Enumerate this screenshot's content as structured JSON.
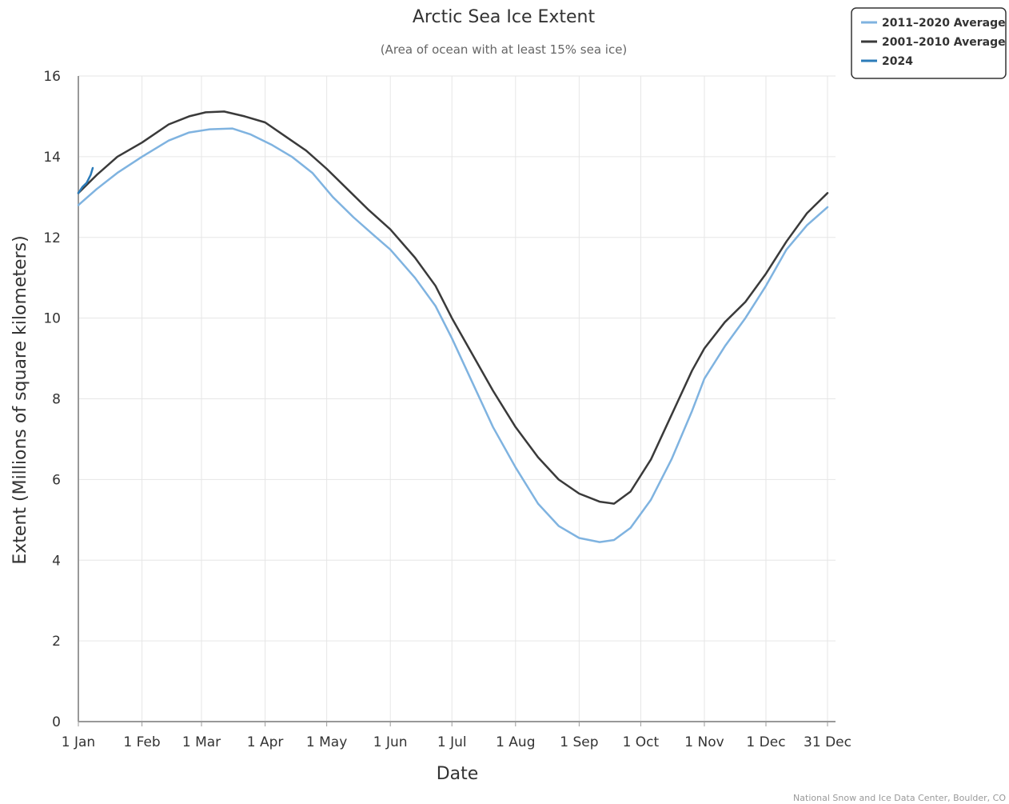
{
  "chart_data": {
    "type": "line",
    "title": "Arctic Sea Ice Extent",
    "subtitle": "(Area of ocean with at least 15% sea ice)",
    "xlabel": "Date",
    "ylabel": "Extent (Millions of square kilometers)",
    "ylim": [
      0,
      16
    ],
    "yticks": [
      "0",
      "2",
      "4",
      "6",
      "8",
      "10",
      "12",
      "14",
      "16"
    ],
    "xticks": [
      {
        "day": 1,
        "label": "1 Jan"
      },
      {
        "day": 32,
        "label": "1 Feb"
      },
      {
        "day": 61,
        "label": "1 Mar"
      },
      {
        "day": 92,
        "label": "1 Apr"
      },
      {
        "day": 122,
        "label": "1 May"
      },
      {
        "day": 153,
        "label": "1 Jun"
      },
      {
        "day": 183,
        "label": "1 Jul"
      },
      {
        "day": 214,
        "label": "1 Aug"
      },
      {
        "day": 245,
        "label": "1 Sep"
      },
      {
        "day": 275,
        "label": "1 Oct"
      },
      {
        "day": 306,
        "label": "1 Nov"
      },
      {
        "day": 336,
        "label": "1 Dec"
      },
      {
        "day": 366,
        "label": "31 Dec"
      }
    ],
    "grid": true,
    "legend_position": "top-right",
    "series": [
      {
        "name": "2011–2020 Average",
        "color": "#7fb3e0",
        "points": [
          [
            1,
            12.8
          ],
          [
            10,
            13.2
          ],
          [
            20,
            13.6
          ],
          [
            32,
            14.0
          ],
          [
            45,
            14.4
          ],
          [
            55,
            14.6
          ],
          [
            65,
            14.68
          ],
          [
            76,
            14.7
          ],
          [
            85,
            14.55
          ],
          [
            95,
            14.3
          ],
          [
            105,
            14.0
          ],
          [
            115,
            13.6
          ],
          [
            125,
            13.0
          ],
          [
            135,
            12.5
          ],
          [
            145,
            12.05
          ],
          [
            153,
            11.7
          ],
          [
            165,
            11.0
          ],
          [
            175,
            10.3
          ],
          [
            183,
            9.5
          ],
          [
            193,
            8.4
          ],
          [
            203,
            7.3
          ],
          [
            214,
            6.3
          ],
          [
            225,
            5.4
          ],
          [
            235,
            4.85
          ],
          [
            245,
            4.55
          ],
          [
            255,
            4.45
          ],
          [
            262,
            4.5
          ],
          [
            270,
            4.8
          ],
          [
            280,
            5.5
          ],
          [
            290,
            6.5
          ],
          [
            300,
            7.7
          ],
          [
            306,
            8.5
          ],
          [
            316,
            9.3
          ],
          [
            326,
            10.0
          ],
          [
            336,
            10.8
          ],
          [
            346,
            11.7
          ],
          [
            356,
            12.3
          ],
          [
            366,
            12.75
          ]
        ]
      },
      {
        "name": "2001–2010 Average",
        "color": "#3a3a3a",
        "points": [
          [
            1,
            13.1
          ],
          [
            10,
            13.55
          ],
          [
            20,
            14.0
          ],
          [
            32,
            14.35
          ],
          [
            45,
            14.8
          ],
          [
            55,
            15.0
          ],
          [
            63,
            15.1
          ],
          [
            72,
            15.12
          ],
          [
            82,
            15.0
          ],
          [
            92,
            14.85
          ],
          [
            102,
            14.5
          ],
          [
            112,
            14.15
          ],
          [
            122,
            13.7
          ],
          [
            132,
            13.2
          ],
          [
            142,
            12.7
          ],
          [
            153,
            12.2
          ],
          [
            165,
            11.5
          ],
          [
            175,
            10.8
          ],
          [
            183,
            10.0
          ],
          [
            193,
            9.1
          ],
          [
            203,
            8.2
          ],
          [
            214,
            7.3
          ],
          [
            225,
            6.55
          ],
          [
            235,
            6.0
          ],
          [
            245,
            5.65
          ],
          [
            255,
            5.45
          ],
          [
            262,
            5.4
          ],
          [
            270,
            5.7
          ],
          [
            280,
            6.5
          ],
          [
            290,
            7.6
          ],
          [
            300,
            8.7
          ],
          [
            306,
            9.25
          ],
          [
            316,
            9.9
          ],
          [
            326,
            10.4
          ],
          [
            336,
            11.1
          ],
          [
            346,
            11.9
          ],
          [
            356,
            12.6
          ],
          [
            366,
            13.1
          ]
        ]
      },
      {
        "name": "2024",
        "color": "#2b7bb9",
        "points": [
          [
            1,
            13.1
          ],
          [
            3,
            13.25
          ],
          [
            5,
            13.35
          ],
          [
            7,
            13.55
          ],
          [
            8,
            13.72
          ]
        ]
      }
    ],
    "credit": "National Snow and Ice Data Center, Boulder, CO"
  }
}
